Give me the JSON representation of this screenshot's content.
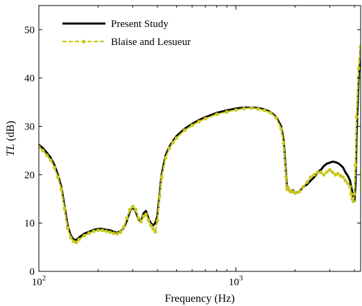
{
  "chart_data": {
    "type": "line",
    "xlabel": "Frequency (Hz)",
    "ylabel": "TL (dB)",
    "ylabel_italic_part": "TL",
    "ylabel_unit_part": " (dB)",
    "xscale": "log",
    "xlim": [
      100,
      4300
    ],
    "ylim": [
      0,
      55
    ],
    "x_ticks": [
      {
        "value": 100,
        "base": "10",
        "exp": "2"
      },
      {
        "value": 1000,
        "base": "10",
        "exp": "3"
      }
    ],
    "y_ticks": [
      0,
      10,
      20,
      30,
      40,
      50
    ],
    "grid": false,
    "legend_position": "top-left",
    "series": [
      {
        "name": "Present Study",
        "color": "#000000",
        "style": "solid",
        "x": [
          100,
          105,
          110,
          115,
          120,
          125,
          130,
          135,
          140,
          145,
          150,
          155,
          160,
          170,
          180,
          190,
          200,
          210,
          220,
          230,
          240,
          250,
          260,
          270,
          280,
          290,
          300,
          310,
          320,
          330,
          340,
          350,
          360,
          370,
          380,
          390,
          400,
          410,
          420,
          440,
          460,
          480,
          500,
          550,
          600,
          650,
          700,
          800,
          900,
          1000,
          1100,
          1200,
          1300,
          1400,
          1500,
          1600,
          1700,
          1750,
          1800,
          1820,
          1840,
          1860,
          1900,
          1950,
          2000,
          2100,
          2200,
          2300,
          2400,
          2500,
          2600,
          2700,
          2800,
          2900,
          3000,
          3100,
          3200,
          3300,
          3400,
          3500,
          3600,
          3700,
          3800,
          3850,
          3900,
          3950,
          4000,
          4050,
          4100,
          4200,
          4300
        ],
        "y": [
          26.2,
          25.5,
          24.5,
          23.5,
          22.0,
          20.0,
          17.5,
          13.5,
          9.5,
          7.5,
          6.6,
          6.5,
          7.0,
          7.8,
          8.2,
          8.6,
          8.8,
          8.8,
          8.6,
          8.5,
          8.2,
          8.0,
          8.3,
          9.0,
          10.5,
          12.5,
          13.2,
          12.5,
          10.8,
          10.3,
          12.0,
          12.5,
          11.0,
          10.0,
          9.5,
          10.0,
          11.5,
          16.0,
          20.0,
          24.0,
          25.8,
          27.0,
          28.0,
          29.5,
          30.5,
          31.3,
          31.9,
          32.8,
          33.3,
          33.7,
          33.9,
          33.9,
          33.8,
          33.5,
          33.0,
          32.0,
          30.0,
          27.0,
          20.0,
          17.0,
          17.5,
          17.0,
          16.5,
          16.8,
          16.2,
          16.5,
          17.5,
          18.0,
          18.8,
          19.5,
          20.5,
          21.0,
          21.8,
          22.3,
          22.5,
          22.7,
          22.6,
          22.4,
          22.0,
          21.5,
          20.5,
          19.8,
          18.8,
          17.5,
          16.5,
          15.5,
          14.5,
          18.0,
          28.0,
          40.0,
          46.0
        ]
      },
      {
        "name": "Blaise and Lesueur",
        "color": "#c8c81e",
        "style": "dashed-dot",
        "x": [
          100,
          105,
          110,
          115,
          120,
          125,
          130,
          135,
          140,
          145,
          150,
          155,
          160,
          170,
          180,
          190,
          200,
          210,
          220,
          230,
          240,
          250,
          260,
          270,
          280,
          290,
          300,
          310,
          320,
          330,
          340,
          350,
          360,
          370,
          380,
          390,
          400,
          410,
          420,
          440,
          460,
          480,
          500,
          550,
          600,
          650,
          700,
          800,
          900,
          1000,
          1100,
          1200,
          1300,
          1400,
          1500,
          1600,
          1700,
          1750,
          1800,
          1820,
          1840,
          1860,
          1900,
          1950,
          2000,
          2100,
          2200,
          2300,
          2400,
          2500,
          2600,
          2700,
          2800,
          2900,
          3000,
          3100,
          3200,
          3300,
          3400,
          3500,
          3600,
          3700,
          3800,
          3850,
          3900,
          3950,
          4000,
          4050,
          4100,
          4200,
          4300
        ],
        "y": [
          25.8,
          25.0,
          24.0,
          23.0,
          21.5,
          19.5,
          17.0,
          13.0,
          9.0,
          7.0,
          6.2,
          6.0,
          6.6,
          7.4,
          7.9,
          8.3,
          8.5,
          8.5,
          8.3,
          8.1,
          7.9,
          7.8,
          8.1,
          9.2,
          11.0,
          12.8,
          13.4,
          12.8,
          11.0,
          10.3,
          11.4,
          11.8,
          10.6,
          9.5,
          8.8,
          8.2,
          10.5,
          15.5,
          19.5,
          23.5,
          25.5,
          26.7,
          27.6,
          29.2,
          30.2,
          31.0,
          31.6,
          32.5,
          33.0,
          33.4,
          33.7,
          33.8,
          33.6,
          33.3,
          32.8,
          31.8,
          29.5,
          26.5,
          19.5,
          17.0,
          17.3,
          16.8,
          16.5,
          16.5,
          16.2,
          16.5,
          17.5,
          18.5,
          19.5,
          20.0,
          20.5,
          20.5,
          20.0,
          20.6,
          21.0,
          20.5,
          20.0,
          20.2,
          19.8,
          19.5,
          18.8,
          18.2,
          17.5,
          16.0,
          15.0,
          14.5,
          16.0,
          22.0,
          32.0,
          42.0,
          46.5
        ]
      }
    ]
  }
}
